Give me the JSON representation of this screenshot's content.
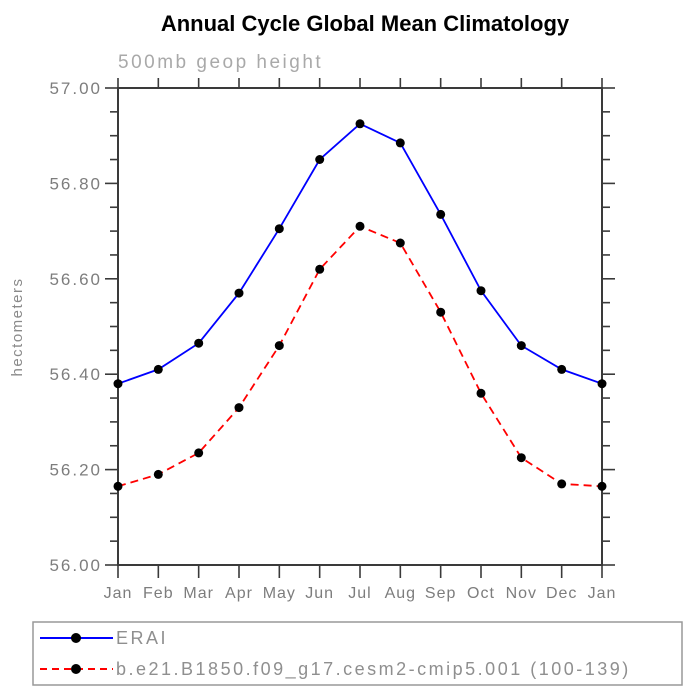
{
  "chart_data": {
    "type": "line",
    "title": "Annual Cycle Global Mean Climatology",
    "subtitle": "500mb geop height",
    "ylabel": "hectometers",
    "xlabel": "",
    "categories": [
      "Jan",
      "Feb",
      "Mar",
      "Apr",
      "May",
      "Jun",
      "Jul",
      "Aug",
      "Sep",
      "Oct",
      "Nov",
      "Dec",
      "Jan"
    ],
    "ylim": [
      56.0,
      57.0
    ],
    "y_major_step": 0.2,
    "y_minor_step": 0.05,
    "y_tick_labels": [
      "56.00",
      "56.20",
      "56.40",
      "56.60",
      "56.80",
      "57.00"
    ],
    "grid": false,
    "legend_position": "bottom",
    "series": [
      {
        "name": "ERAI",
        "color": "#0000ff",
        "line_style": "solid",
        "marker": "circle",
        "marker_color": "#000000",
        "values": [
          56.38,
          56.41,
          56.465,
          56.57,
          56.705,
          56.85,
          56.925,
          56.885,
          56.735,
          56.575,
          56.46,
          56.41,
          56.38
        ]
      },
      {
        "name": "b.e21.B1850.f09_g17.cesm2-cmip5.001 (100-139)",
        "color": "#ff0000",
        "line_style": "dashed",
        "marker": "circle",
        "marker_color": "#000000",
        "values": [
          56.165,
          56.19,
          56.235,
          56.33,
          56.46,
          56.62,
          56.71,
          56.675,
          56.53,
          56.36,
          56.225,
          56.17,
          56.165
        ]
      }
    ]
  },
  "colors": {
    "title": "#000000",
    "subtitle": "#a9a9a9",
    "tick_label": "#7d7d7d",
    "axis": "#3a3a3a",
    "axis_label": "#8a8a8a",
    "legend_text": "#8f8f8f",
    "legend_border": "#999999"
  }
}
